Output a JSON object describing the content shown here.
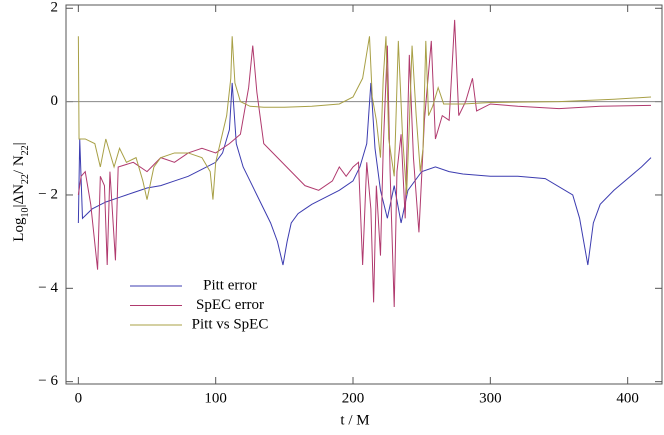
{
  "chart_data": {
    "type": "line",
    "xlabel": "t / M",
    "ylabel": [
      "Log",
      "10",
      "|ΔN",
      "22",
      "/ N",
      "22",
      "|"
    ],
    "xlim": [
      -9,
      425
    ],
    "ylim": [
      -6.05,
      2.07
    ],
    "xticks": [
      0,
      100,
      200,
      300,
      400
    ],
    "yticks": [
      {
        "value": -6,
        "label": "− 6"
      },
      {
        "value": -4,
        "label": "− 4"
      },
      {
        "value": -2,
        "label": "− 2"
      },
      0,
      2
    ],
    "zero_line": true,
    "legend": "lower left",
    "series": [
      {
        "name": "Pitt error",
        "color": "#3c3cb0",
        "x": [
          0,
          1,
          3,
          10,
          20,
          30,
          40,
          50,
          60,
          70,
          80,
          90,
          100,
          105,
          110,
          112,
          115,
          120,
          125,
          130,
          135,
          140,
          145,
          149,
          152,
          155,
          160,
          165,
          170,
          180,
          190,
          200,
          205,
          210,
          213,
          216,
          220,
          225,
          230,
          235,
          240,
          250,
          260,
          270,
          280,
          300,
          320,
          340,
          360,
          365,
          371,
          375,
          380,
          390,
          400,
          410,
          417
        ],
        "values": [
          -2.6,
          -0.8,
          -2.5,
          -2.3,
          -2.15,
          -2.05,
          -1.95,
          -1.85,
          -1.8,
          -1.7,
          -1.6,
          -1.45,
          -1.3,
          -1.1,
          -0.6,
          0.4,
          -0.9,
          -1.4,
          -1.7,
          -2.0,
          -2.3,
          -2.6,
          -3.0,
          -3.5,
          -3.0,
          -2.6,
          -2.4,
          -2.3,
          -2.2,
          -2.05,
          -1.9,
          -1.7,
          -1.4,
          -0.9,
          0.4,
          -1.0,
          -1.9,
          -2.5,
          -1.8,
          -2.6,
          -1.9,
          -1.5,
          -1.4,
          -1.5,
          -1.55,
          -1.6,
          -1.6,
          -1.65,
          -2.0,
          -2.5,
          -3.5,
          -2.6,
          -2.2,
          -1.9,
          -1.65,
          -1.4,
          -1.2
        ]
      },
      {
        "name": "SpEC error",
        "color": "#b03a6e",
        "x": [
          0,
          2,
          5,
          9,
          14,
          16,
          19,
          21,
          23,
          27,
          29,
          40,
          50,
          60,
          70,
          80,
          90,
          100,
          110,
          118,
          124,
          127,
          130,
          135,
          145,
          155,
          165,
          175,
          185,
          190,
          195,
          200,
          204,
          207,
          210,
          213,
          215,
          217,
          220,
          222,
          225,
          227,
          230,
          232,
          235,
          238,
          241,
          244,
          248,
          252,
          257,
          260,
          265,
          270,
          274,
          277,
          282,
          287,
          290,
          300,
          320,
          350,
          380,
          417
        ],
        "values": [
          -2.0,
          -1.6,
          -1.5,
          -2.2,
          -3.6,
          -1.6,
          -1.8,
          -3.5,
          -1.5,
          -3.4,
          -1.4,
          -1.3,
          -1.5,
          -1.2,
          -1.3,
          -1.1,
          -1.0,
          -1.1,
          -0.9,
          -0.7,
          0.3,
          1.2,
          0.2,
          -0.9,
          -1.2,
          -1.5,
          -1.8,
          -1.9,
          -1.7,
          -1.4,
          -1.6,
          -1.4,
          -1.3,
          -3.5,
          -1.3,
          -2.3,
          -4.3,
          -1.8,
          -3.3,
          -1.0,
          1.2,
          -1.5,
          -4.4,
          -1.5,
          -0.7,
          -2.5,
          1.0,
          -1.2,
          -2.8,
          -0.4,
          1.3,
          -0.8,
          -0.3,
          -0.4,
          1.75,
          -0.3,
          0.0,
          0.5,
          -0.2,
          -0.05,
          -0.1,
          -0.15,
          -0.1,
          -0.08
        ]
      },
      {
        "name": "Pitt vs SpEC",
        "color": "#a8a046",
        "x": [
          0,
          0.5,
          5,
          12,
          16,
          20,
          26,
          30,
          35,
          42,
          47,
          50,
          55,
          60,
          70,
          80,
          90,
          96,
          98,
          100,
          104,
          108,
          111,
          112,
          114,
          118,
          125,
          135,
          150,
          170,
          190,
          200,
          207,
          212,
          214,
          217,
          220,
          222,
          224,
          226,
          230,
          233,
          236,
          239,
          241,
          243,
          246,
          249,
          251,
          253,
          255,
          258,
          262,
          266,
          280,
          300,
          350,
          390,
          417
        ],
        "values": [
          1.4,
          -0.8,
          -0.8,
          -0.9,
          -1.4,
          -0.8,
          -1.4,
          -1.0,
          -1.3,
          -1.2,
          -1.7,
          -2.1,
          -1.4,
          -1.2,
          -1.1,
          -1.1,
          -1.2,
          -1.5,
          -2.1,
          -1.3,
          -0.8,
          -0.3,
          0.5,
          1.4,
          0.4,
          0.0,
          -0.1,
          -0.12,
          -0.12,
          -0.1,
          -0.05,
          0.1,
          0.5,
          1.4,
          0.1,
          -0.4,
          -1.2,
          0.5,
          1.4,
          -0.8,
          -1.6,
          1.3,
          -0.7,
          -2.0,
          -0.5,
          1.2,
          -0.3,
          -1.5,
          -1.0,
          1.3,
          -0.3,
          -0.1,
          0.3,
          -0.05,
          -0.05,
          -0.02,
          0.0,
          0.05,
          0.1
        ]
      }
    ]
  }
}
